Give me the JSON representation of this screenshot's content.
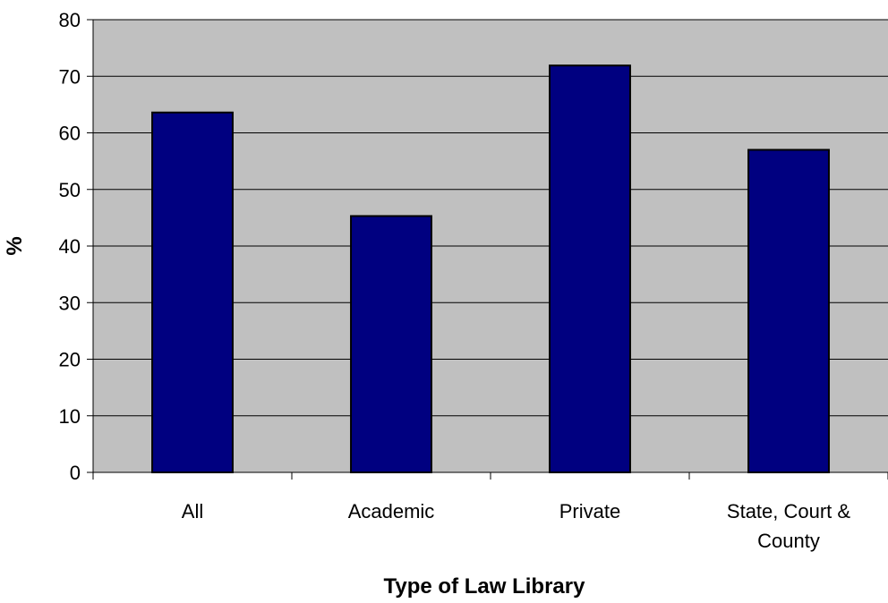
{
  "chart_data": {
    "type": "bar",
    "title": "",
    "xlabel": "Type of Law Library",
    "ylabel": "%",
    "categories": [
      "All",
      "Academic",
      "Private",
      "State, Court & County"
    ],
    "category_lines": [
      [
        "All"
      ],
      [
        "Academic"
      ],
      [
        "Private"
      ],
      [
        "State, Court &",
        "County"
      ]
    ],
    "values": [
      63.6,
      45.3,
      71.9,
      57.0
    ],
    "ylim": [
      0,
      80
    ],
    "yticks": [
      0,
      10,
      20,
      30,
      40,
      50,
      60,
      70,
      80
    ],
    "ytick_labels": [
      "0",
      "10",
      "20",
      "30",
      "40",
      "50",
      "60",
      "70",
      "80"
    ],
    "grid": true,
    "legend": "none",
    "colors": {
      "bar": "#000080",
      "plot_background": "#c0c0c0",
      "gridline": "#000000",
      "axis": "#000000"
    }
  }
}
